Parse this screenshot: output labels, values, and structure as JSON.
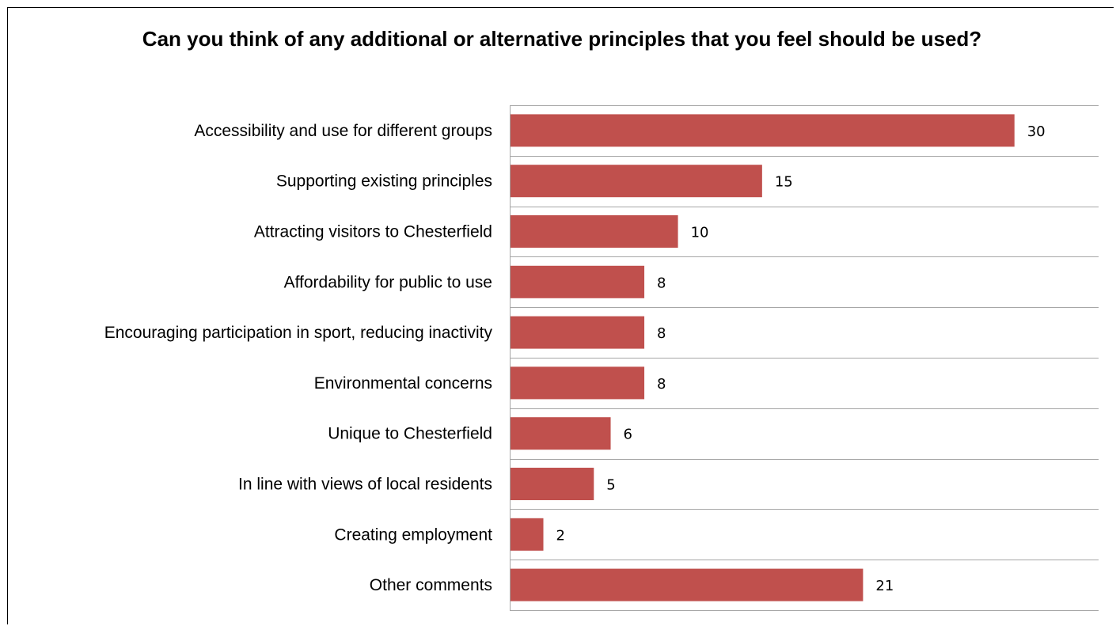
{
  "chart_data": {
    "type": "bar",
    "orientation": "horizontal",
    "title": "Can you think of any additional or alternative principles that you feel should be used?",
    "categories": [
      "Accessibility and use for different groups",
      "Supporting existing principles",
      "Attracting visitors to Chesterfield",
      "Affordability for public to use",
      "Encouraging participation in sport, reducing inactivity",
      "Environmental concerns",
      "Unique to Chesterfield",
      "In line with views of local residents",
      "Creating employment",
      "Other comments"
    ],
    "values": [
      30,
      15,
      10,
      8,
      8,
      8,
      6,
      5,
      2,
      21
    ],
    "xlim": [
      0,
      35
    ],
    "grid": true,
    "legend": "none",
    "bar_color": "#c0504d",
    "grid_color": "#a6a6a6"
  }
}
